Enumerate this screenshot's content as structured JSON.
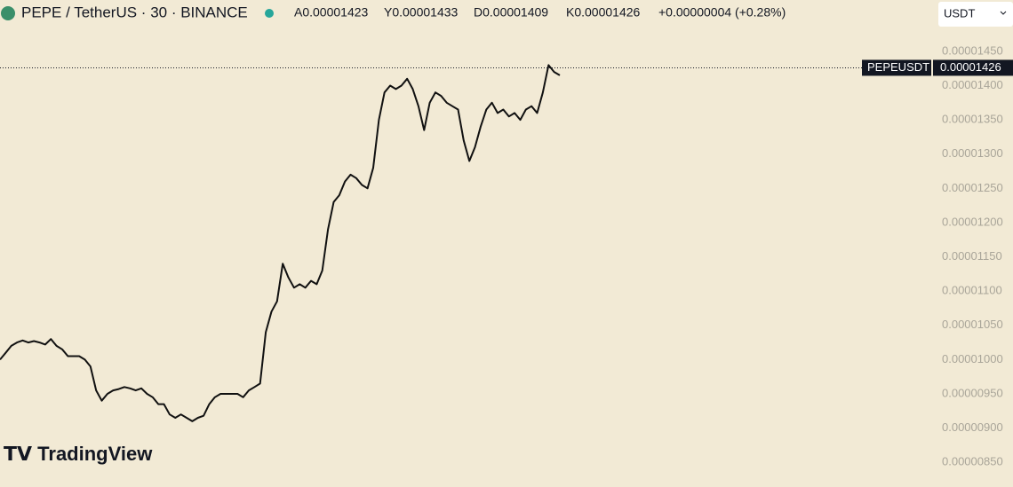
{
  "chart_data": {
    "type": "line",
    "title": "PEPE / TetherUS · 30 · BINANCE",
    "ohlc": [
      "A0.00001423",
      "Y0.00001433",
      "D0.00001409",
      "K0.00001426"
    ],
    "change": "+0.00000004 (+0.28%)",
    "currency": "USDT",
    "symbol_tag": "PEPEUSDT",
    "last_price": 1.426e-05,
    "watermark": "TradingView",
    "color": "#111111",
    "grid": false,
    "ylim": [
      8.14e-06,
      1.525e-05
    ],
    "yticks": [
      {
        "value": 1.45e-05,
        "label": "0.00001450"
      },
      {
        "value": 1.4e-05,
        "label": "0.00001400"
      },
      {
        "value": 1.35e-05,
        "label": "0.00001350"
      },
      {
        "value": 1.3e-05,
        "label": "0.00001300"
      },
      {
        "value": 1.25e-05,
        "label": "0.00001250"
      },
      {
        "value": 1.2e-05,
        "label": "0.00001200"
      },
      {
        "value": 1.15e-05,
        "label": "0.00001150"
      },
      {
        "value": 1.1e-05,
        "label": "0.00001100"
      },
      {
        "value": 1.05e-05,
        "label": "0.00001050"
      },
      {
        "value": 1e-05,
        "label": "0.00001000"
      },
      {
        "value": 9.5e-06,
        "label": "0.00000950"
      },
      {
        "value": 9e-06,
        "label": "0.00000900"
      },
      {
        "value": 8.5e-06,
        "label": "0.00000850"
      }
    ],
    "values": [
      1e-05,
      1.01e-05,
      1.02e-05,
      1.025e-05,
      1.028e-05,
      1.025e-05,
      1.027e-05,
      1.025e-05,
      1.022e-05,
      1.03e-05,
      1.02e-05,
      1.015e-05,
      1.005e-05,
      1.005e-05,
      1.005e-05,
      1e-05,
      9.9e-06,
      9.55e-06,
      9.4e-06,
      9.5e-06,
      9.55e-06,
      9.57e-06,
      9.6e-06,
      9.58e-06,
      9.55e-06,
      9.58e-06,
      9.5e-06,
      9.45e-06,
      9.35e-06,
      9.35e-06,
      9.2e-06,
      9.15e-06,
      9.2e-06,
      9.15e-06,
      9.1e-06,
      9.15e-06,
      9.18e-06,
      9.35e-06,
      9.45e-06,
      9.5e-06,
      9.5e-06,
      9.5e-06,
      9.5e-06,
      9.45e-06,
      9.55e-06,
      9.6e-06,
      9.65e-06,
      1.04e-05,
      1.07e-05,
      1.085e-05,
      1.14e-05,
      1.12e-05,
      1.105e-05,
      1.11e-05,
      1.105e-05,
      1.115e-05,
      1.11e-05,
      1.13e-05,
      1.19e-05,
      1.23e-05,
      1.24e-05,
      1.26e-05,
      1.27e-05,
      1.265e-05,
      1.255e-05,
      1.25e-05,
      1.28e-05,
      1.35e-05,
      1.39e-05,
      1.4e-05,
      1.395e-05,
      1.4e-05,
      1.41e-05,
      1.395e-05,
      1.37e-05,
      1.335e-05,
      1.375e-05,
      1.39e-05,
      1.385e-05,
      1.375e-05,
      1.37e-05,
      1.365e-05,
      1.32e-05,
      1.29e-05,
      1.31e-05,
      1.34e-05,
      1.365e-05,
      1.375e-05,
      1.36e-05,
      1.365e-05,
      1.355e-05,
      1.36e-05,
      1.35e-05,
      1.365e-05,
      1.37e-05,
      1.36e-05,
      1.39e-05,
      1.43e-05,
      1.42e-05,
      1.415e-05
    ]
  }
}
